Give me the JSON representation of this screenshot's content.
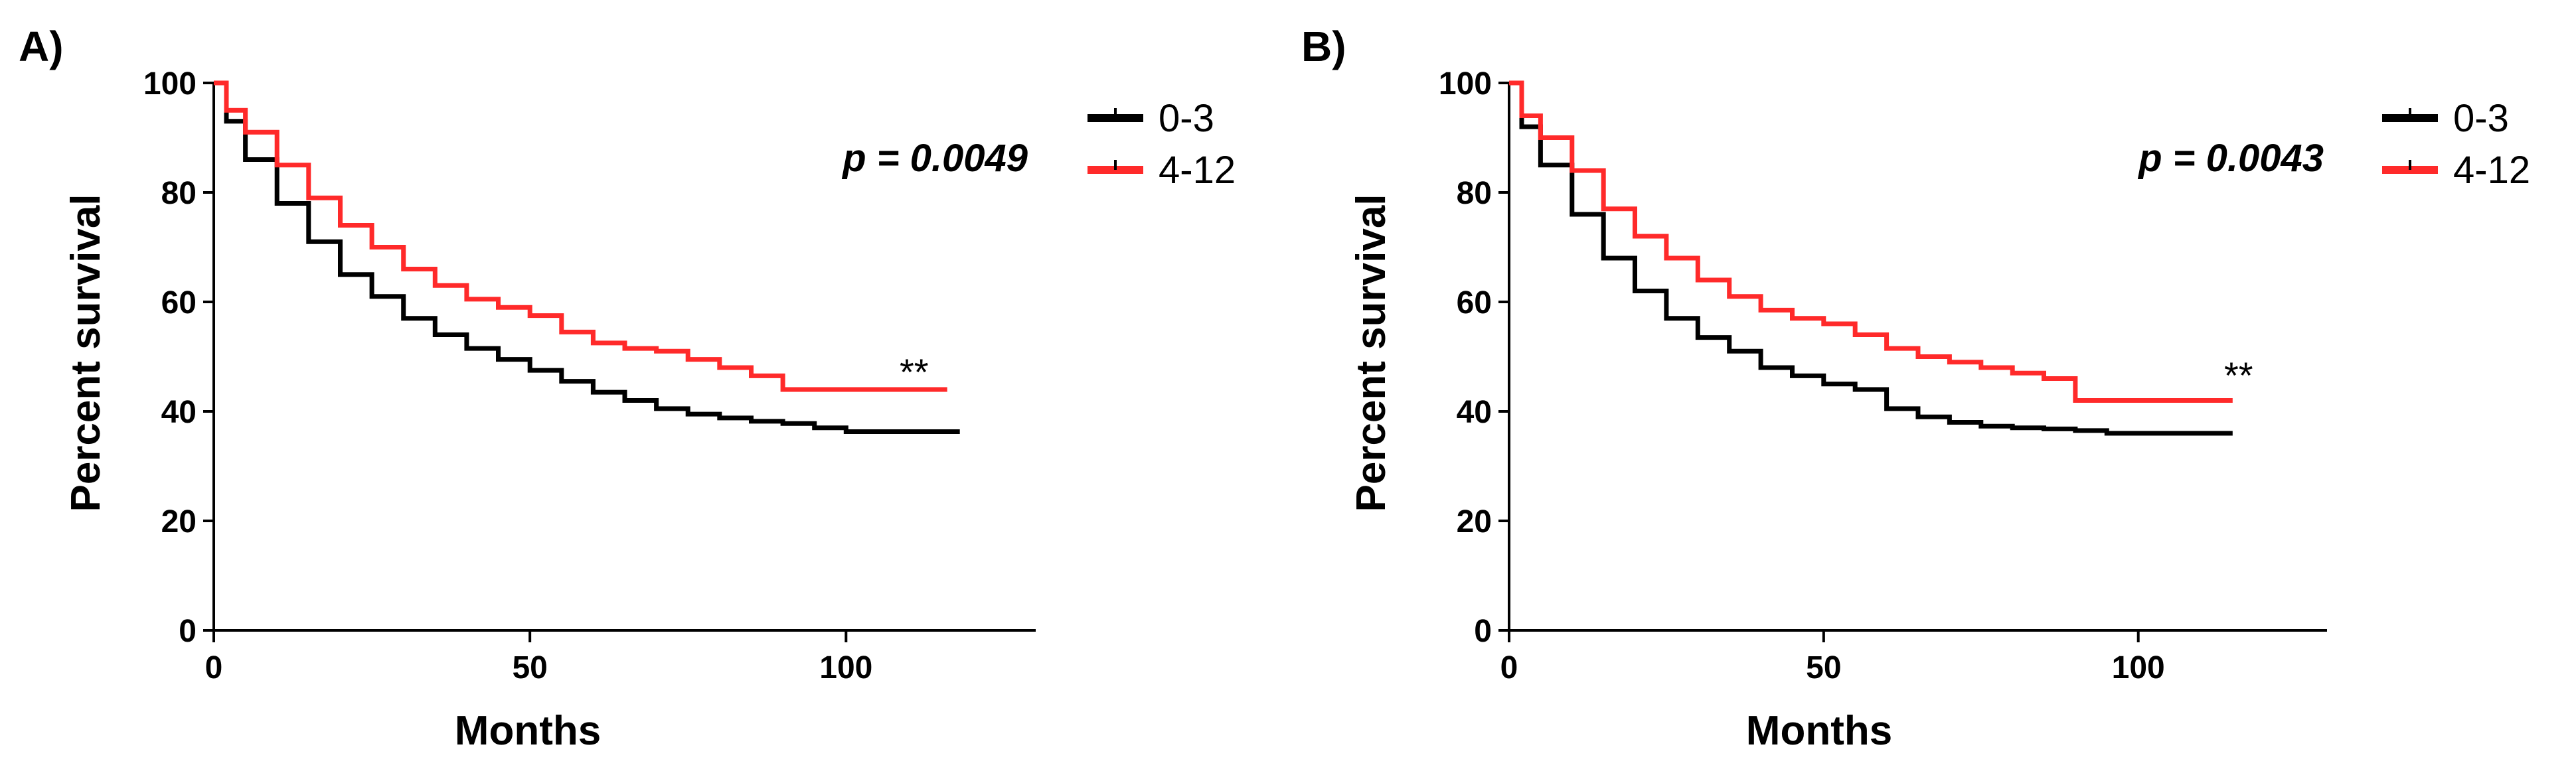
{
  "chart_data": [
    {
      "panel_label": "A)",
      "type": "line",
      "subtype": "kaplan-meier",
      "xlabel": "Months",
      "ylabel": "Percent survival",
      "xlim": [
        0,
        130
      ],
      "ylim": [
        0,
        100
      ],
      "x_ticks": [
        0,
        50,
        100
      ],
      "y_ticks": [
        0,
        20,
        40,
        60,
        80,
        100
      ],
      "grid": false,
      "legend_position": "top-right",
      "p_value_label": "p = 0.0049",
      "significance_label": "**",
      "series": [
        {
          "name": "0-3",
          "color": "#000000",
          "x": [
            0,
            2,
            5,
            10,
            15,
            20,
            25,
            30,
            35,
            40,
            45,
            50,
            55,
            60,
            65,
            70,
            75,
            80,
            85,
            90,
            95,
            100,
            110,
            118
          ],
          "y": [
            100,
            93,
            86,
            78,
            71,
            65,
            61,
            57,
            54,
            51.5,
            49.5,
            47.5,
            45.5,
            43.5,
            42,
            40.5,
            39.5,
            38.8,
            38.2,
            37.8,
            37,
            36.3,
            36.3,
            36.3
          ]
        },
        {
          "name": "4-12",
          "color": "#ff2a2a",
          "x": [
            0,
            2,
            5,
            10,
            15,
            20,
            25,
            30,
            35,
            40,
            45,
            50,
            55,
            60,
            65,
            70,
            75,
            80,
            85,
            90,
            95,
            100,
            110,
            116
          ],
          "y": [
            100,
            95,
            91,
            85,
            79,
            74,
            70,
            66,
            63,
            60.5,
            59,
            57.5,
            54.5,
            52.5,
            51.5,
            51,
            49.5,
            48,
            46.5,
            44,
            44,
            44,
            44,
            44
          ]
        }
      ]
    },
    {
      "panel_label": "B)",
      "type": "line",
      "subtype": "kaplan-meier",
      "xlabel": "Months",
      "ylabel": "Percent survival",
      "xlim": [
        0,
        130
      ],
      "ylim": [
        0,
        100
      ],
      "x_ticks": [
        0,
        50,
        100
      ],
      "y_ticks": [
        0,
        20,
        40,
        60,
        80,
        100
      ],
      "grid": false,
      "legend_position": "top-right",
      "p_value_label": "p = 0.0043",
      "significance_label": "**",
      "series": [
        {
          "name": "0-3",
          "color": "#000000",
          "x": [
            0,
            2,
            5,
            10,
            15,
            20,
            25,
            30,
            35,
            40,
            45,
            50,
            55,
            60,
            65,
            70,
            75,
            80,
            85,
            90,
            95,
            100,
            110,
            115
          ],
          "y": [
            100,
            92,
            85,
            76,
            68,
            62,
            57,
            53.5,
            51,
            48,
            46.5,
            45,
            44,
            40.5,
            39,
            38,
            37.3,
            37,
            36.8,
            36.5,
            36,
            36,
            36,
            36
          ]
        },
        {
          "name": "4-12",
          "color": "#ff2a2a",
          "x": [
            0,
            2,
            5,
            10,
            15,
            20,
            25,
            30,
            35,
            40,
            45,
            50,
            55,
            60,
            65,
            70,
            75,
            80,
            85,
            90,
            95,
            100,
            110,
            115
          ],
          "y": [
            100,
            94,
            90,
            84,
            77,
            72,
            68,
            64,
            61,
            58.5,
            57,
            56,
            54,
            51.5,
            50,
            49,
            48,
            47,
            46,
            42,
            42,
            42,
            42,
            42
          ]
        }
      ]
    }
  ]
}
